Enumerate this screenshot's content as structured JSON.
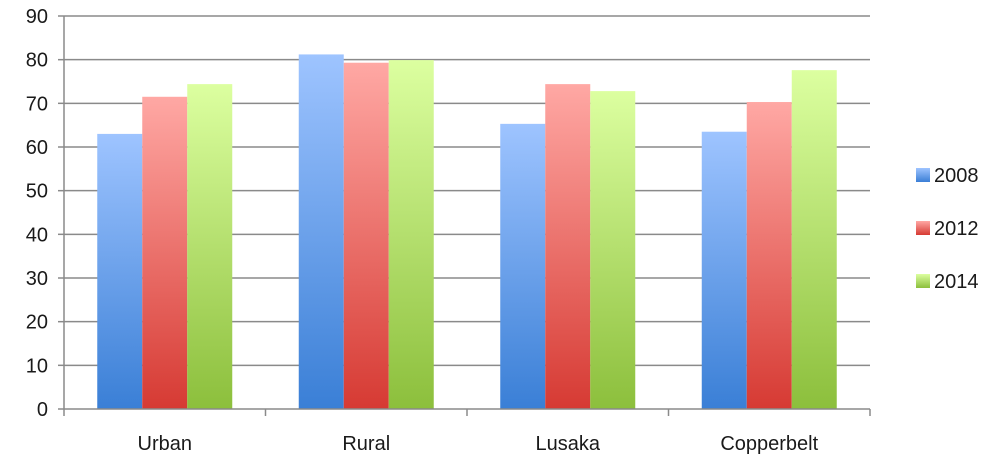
{
  "chart_data": {
    "type": "bar",
    "categories": [
      "Urban",
      "Rural",
      "Lusaka",
      "Copperbelt"
    ],
    "series": [
      {
        "name": "2008",
        "values": [
          63,
          81.2,
          65.3,
          63.5
        ],
        "color_top": "#9ec4ff",
        "color_bottom": "#3a7fd6"
      },
      {
        "name": "2012",
        "values": [
          71.5,
          79.3,
          74.4,
          70.3
        ],
        "color_top": "#ffa8a4",
        "color_bottom": "#d63a33"
      },
      {
        "name": "2014",
        "values": [
          74.4,
          79.9,
          72.8,
          77.6
        ],
        "color_top": "#dcffa0",
        "color_bottom": "#8cbf3c"
      }
    ],
    "ylim": [
      0,
      90
    ],
    "yticks": [
      0,
      10,
      20,
      30,
      40,
      50,
      60,
      70,
      80,
      90
    ],
    "grid": true,
    "legend_position": "right",
    "title": "",
    "xlabel": "",
    "ylabel": ""
  }
}
